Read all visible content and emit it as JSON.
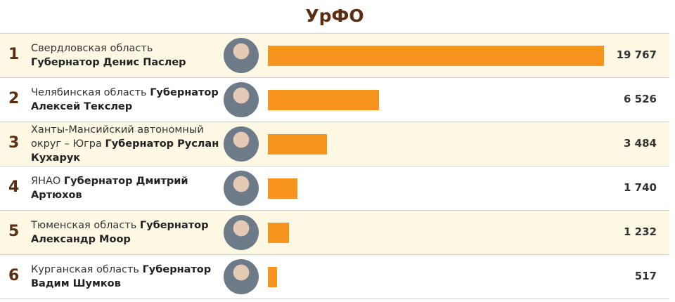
{
  "chart_data": {
    "type": "bar",
    "title": "УрФО",
    "ranks": [
      1,
      2,
      3,
      4,
      5,
      6
    ],
    "categories": [
      "Свердловская область",
      "Челябинская область",
      "Ханты-Мансийский автономный округ – Югра",
      "ЯНАО",
      "Тюменская область",
      "Курганская область"
    ],
    "governors": [
      "Губернатор Денис Паслер",
      "Губернатор Алексей Текслер",
      "Губернатор Руслан Кухарук",
      "Губернатор Дмитрий Артюхов",
      "Губернатор Александр Моор",
      "Губернатор Вадим Шумков"
    ],
    "values": [
      19767,
      6526,
      3484,
      1740,
      1232,
      517
    ],
    "value_labels": [
      "19 767",
      "6 526",
      "3 484",
      "1 740",
      "1 232",
      "517"
    ],
    "color": "#f7941d"
  }
}
